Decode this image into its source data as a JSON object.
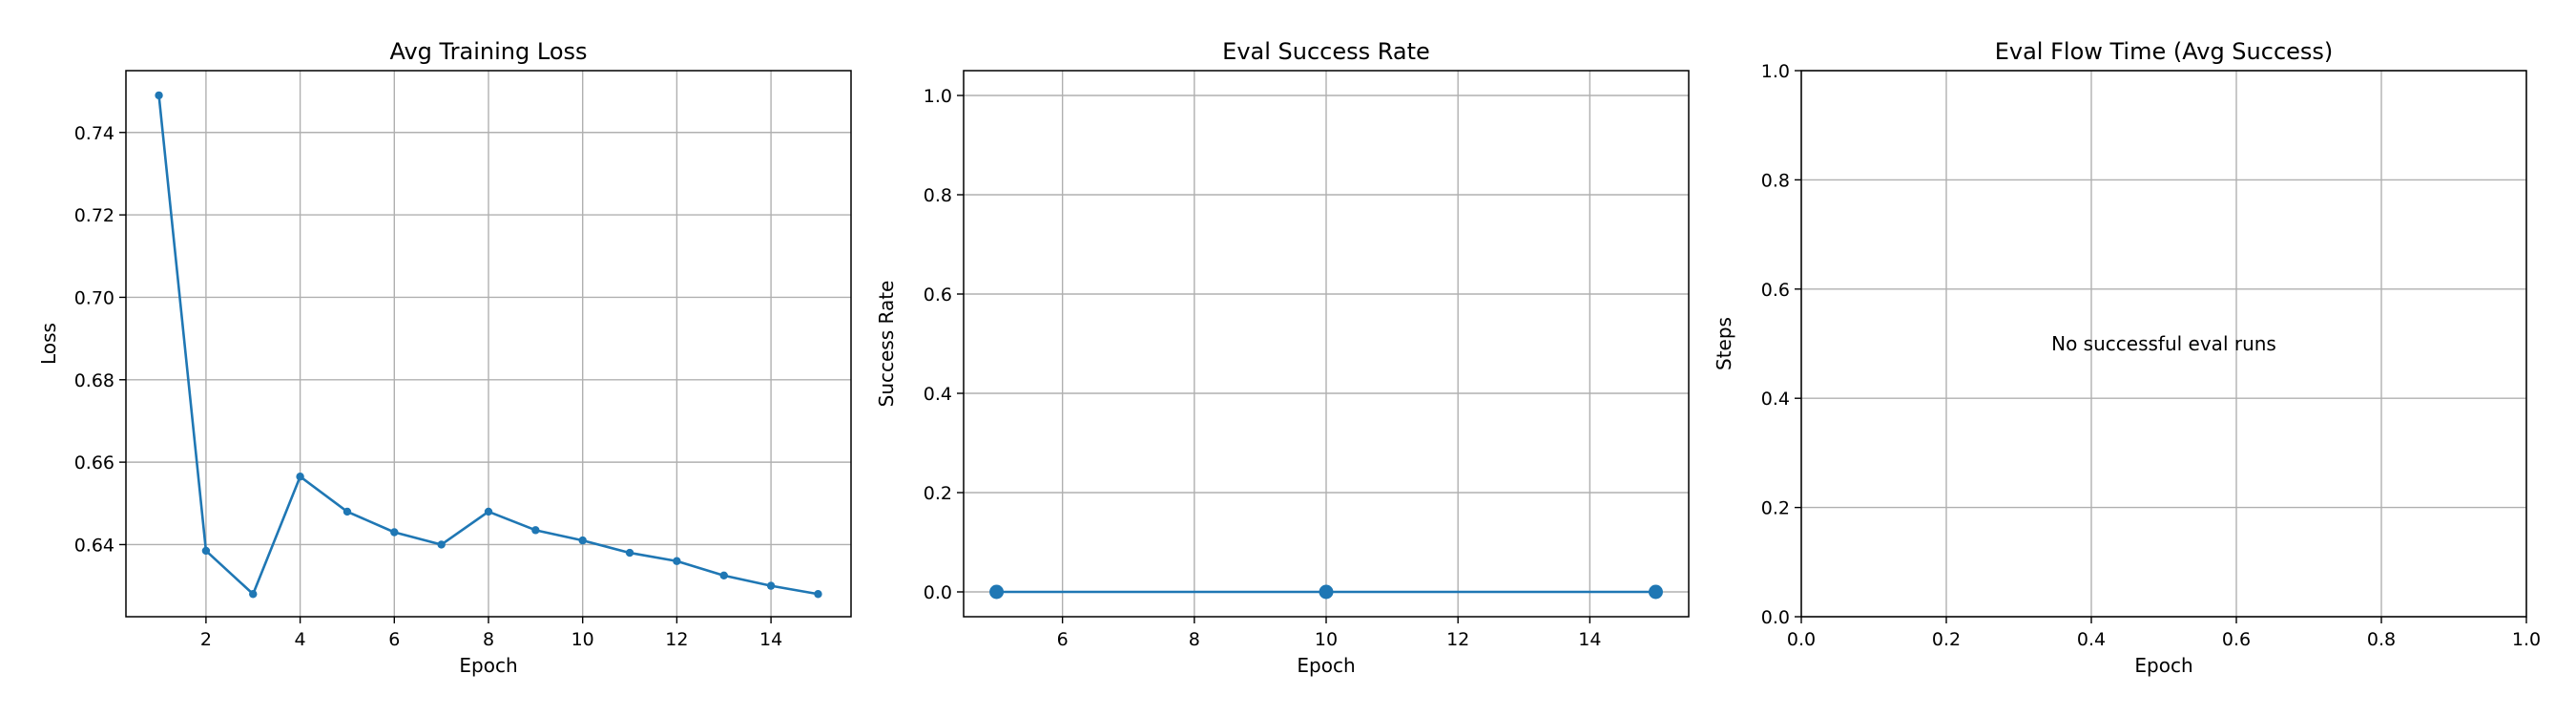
{
  "chart_data": [
    {
      "type": "line",
      "title": "Avg Training Loss",
      "xlabel": "Epoch",
      "ylabel": "Loss",
      "xlim": [
        0.3,
        15.7
      ],
      "ylim": [
        0.6225,
        0.755
      ],
      "xticks": [
        2,
        4,
        6,
        8,
        10,
        12,
        14
      ],
      "yticks": [
        0.64,
        0.66,
        0.68,
        0.7,
        0.72,
        0.74
      ],
      "ytick_labels": [
        "0.64",
        "0.66",
        "0.68",
        "0.70",
        "0.72",
        "0.74"
      ],
      "grid": true,
      "color": "#1f77b4",
      "marker": "small-dot",
      "series": [
        {
          "x": [
            1,
            2,
            3,
            4,
            5,
            6,
            7,
            8,
            9,
            10,
            11,
            12,
            13,
            14,
            15
          ],
          "y": [
            0.749,
            0.6385,
            0.628,
            0.6565,
            0.648,
            0.643,
            0.64,
            0.648,
            0.6435,
            0.641,
            0.638,
            0.636,
            0.6325,
            0.63,
            0.628
          ]
        }
      ]
    },
    {
      "type": "line",
      "title": "Eval Success Rate",
      "xlabel": "Epoch",
      "ylabel": "Success Rate",
      "xlim": [
        4.5,
        15.5
      ],
      "ylim": [
        -0.05,
        1.05
      ],
      "xticks": [
        6,
        8,
        10,
        12,
        14
      ],
      "yticks": [
        0.0,
        0.2,
        0.4,
        0.6,
        0.8,
        1.0
      ],
      "ytick_labels": [
        "0.0",
        "0.2",
        "0.4",
        "0.6",
        "0.8",
        "1.0"
      ],
      "grid": true,
      "color": "#1f77b4",
      "marker": "large-dot",
      "series": [
        {
          "x": [
            5,
            10,
            15
          ],
          "y": [
            0.0,
            0.0,
            0.0
          ]
        }
      ]
    },
    {
      "type": "line",
      "title": "Eval Flow Time (Avg Success)",
      "xlabel": "Epoch",
      "ylabel": "Steps",
      "xlim": [
        0.0,
        1.0
      ],
      "ylim": [
        0.0,
        1.0
      ],
      "xticks": [
        0.0,
        0.2,
        0.4,
        0.6,
        0.8,
        1.0
      ],
      "xtick_labels": [
        "0.0",
        "0.2",
        "0.4",
        "0.6",
        "0.8",
        "1.0"
      ],
      "yticks": [
        0.0,
        0.2,
        0.4,
        0.6,
        0.8,
        1.0
      ],
      "ytick_labels": [
        "0.0",
        "0.2",
        "0.4",
        "0.6",
        "0.8",
        "1.0"
      ],
      "grid": true,
      "series": [],
      "annotation": "No successful eval runs"
    }
  ]
}
